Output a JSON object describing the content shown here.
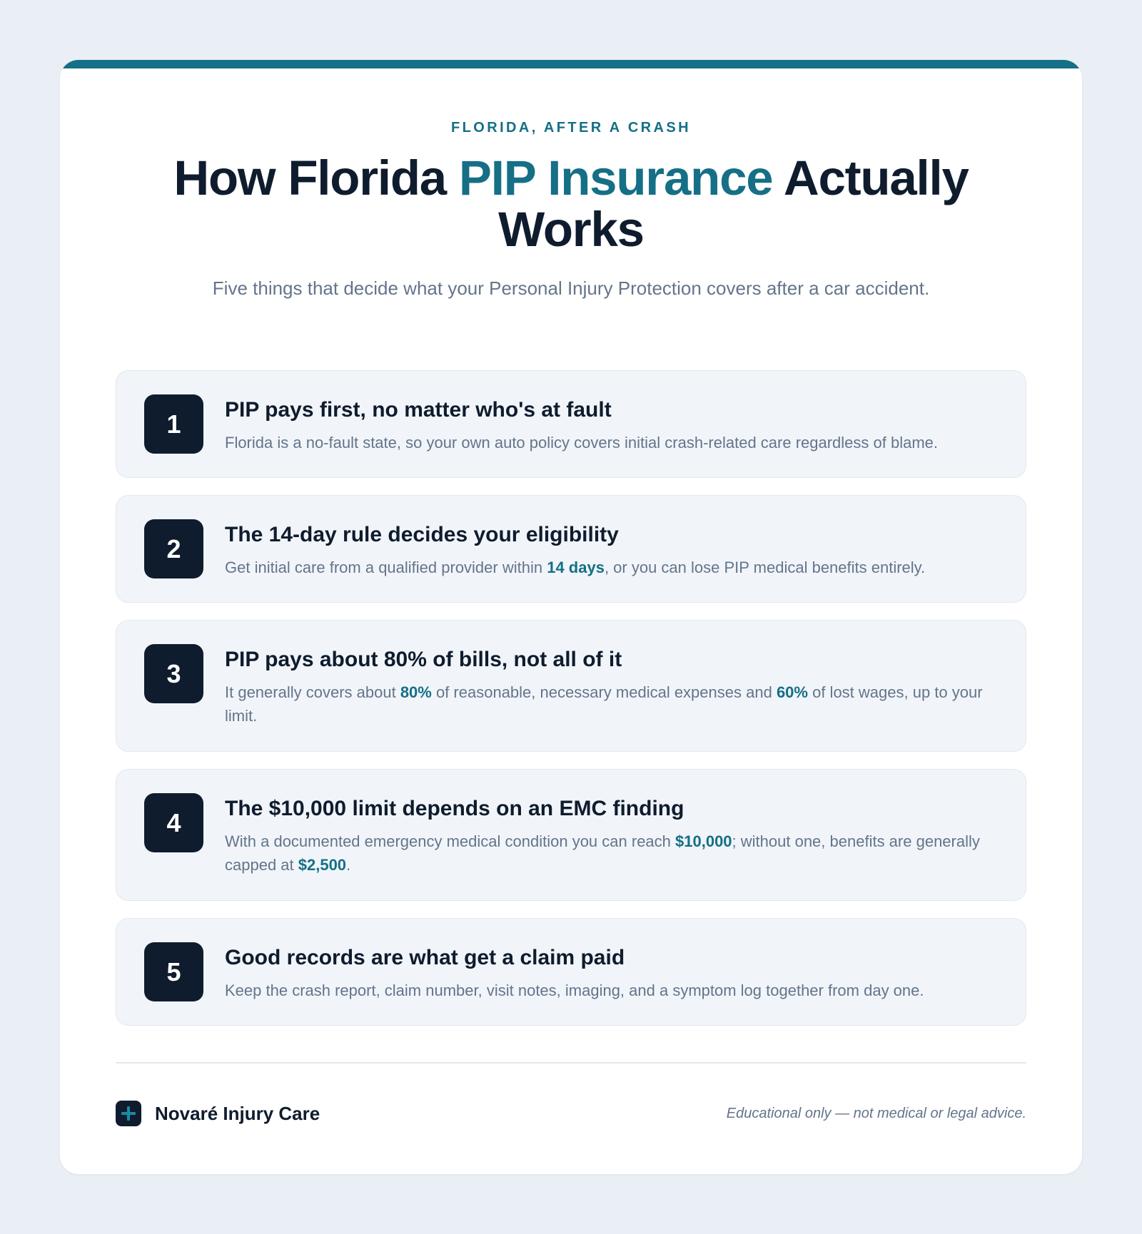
{
  "header": {
    "eyebrow": "FLORIDA, AFTER A CRASH",
    "title_part1": "How Florida ",
    "title_accent": "PIP Insurance",
    "title_part2": " Actually Works",
    "subtitle": "Five things that decide what your Personal Injury Protection covers after a car accident."
  },
  "items": [
    {
      "number": "1",
      "title": "PIP pays first, no matter who's at fault",
      "body": [
        {
          "text": "Florida is a no-fault state, so your own auto policy covers initial crash-related care regardless of blame."
        }
      ]
    },
    {
      "number": "2",
      "title": "The 14-day rule decides your eligibility",
      "body": [
        {
          "text": "Get initial care from a qualified provider within "
        },
        {
          "text": "14 days",
          "highlight": true
        },
        {
          "text": ", or you can lose PIP medical benefits entirely."
        }
      ]
    },
    {
      "number": "3",
      "title": "PIP pays about 80% of bills, not all of it",
      "body": [
        {
          "text": "It generally covers about "
        },
        {
          "text": "80%",
          "highlight": true
        },
        {
          "text": " of reasonable, necessary medical expenses and "
        },
        {
          "text": "60%",
          "highlight": true
        },
        {
          "text": " of lost wages, up to your limit."
        }
      ]
    },
    {
      "number": "4",
      "title": "The $10,000 limit depends on an EMC finding",
      "body": [
        {
          "text": "With a documented emergency medical condition you can reach "
        },
        {
          "text": "$10,000",
          "highlight": true
        },
        {
          "text": "; without one, benefits are generally capped at "
        },
        {
          "text": "$2,500",
          "highlight": true
        },
        {
          "text": "."
        }
      ]
    },
    {
      "number": "5",
      "title": "Good records are what get a claim paid",
      "body": [
        {
          "text": "Keep the crash report, claim number, visit notes, imaging, and a symptom log together from day one."
        }
      ]
    }
  ],
  "footer": {
    "brand_icon": "medical-cross-icon",
    "brand_name": "Novaré Injury Care",
    "disclaimer": "Educational only — not medical or legal advice."
  },
  "colors": {
    "accent": "#156f86",
    "navy": "#0f1c2e",
    "muted": "#64748b",
    "card_bg": "#f1f5f9",
    "page_bg": "#eaeff5"
  }
}
